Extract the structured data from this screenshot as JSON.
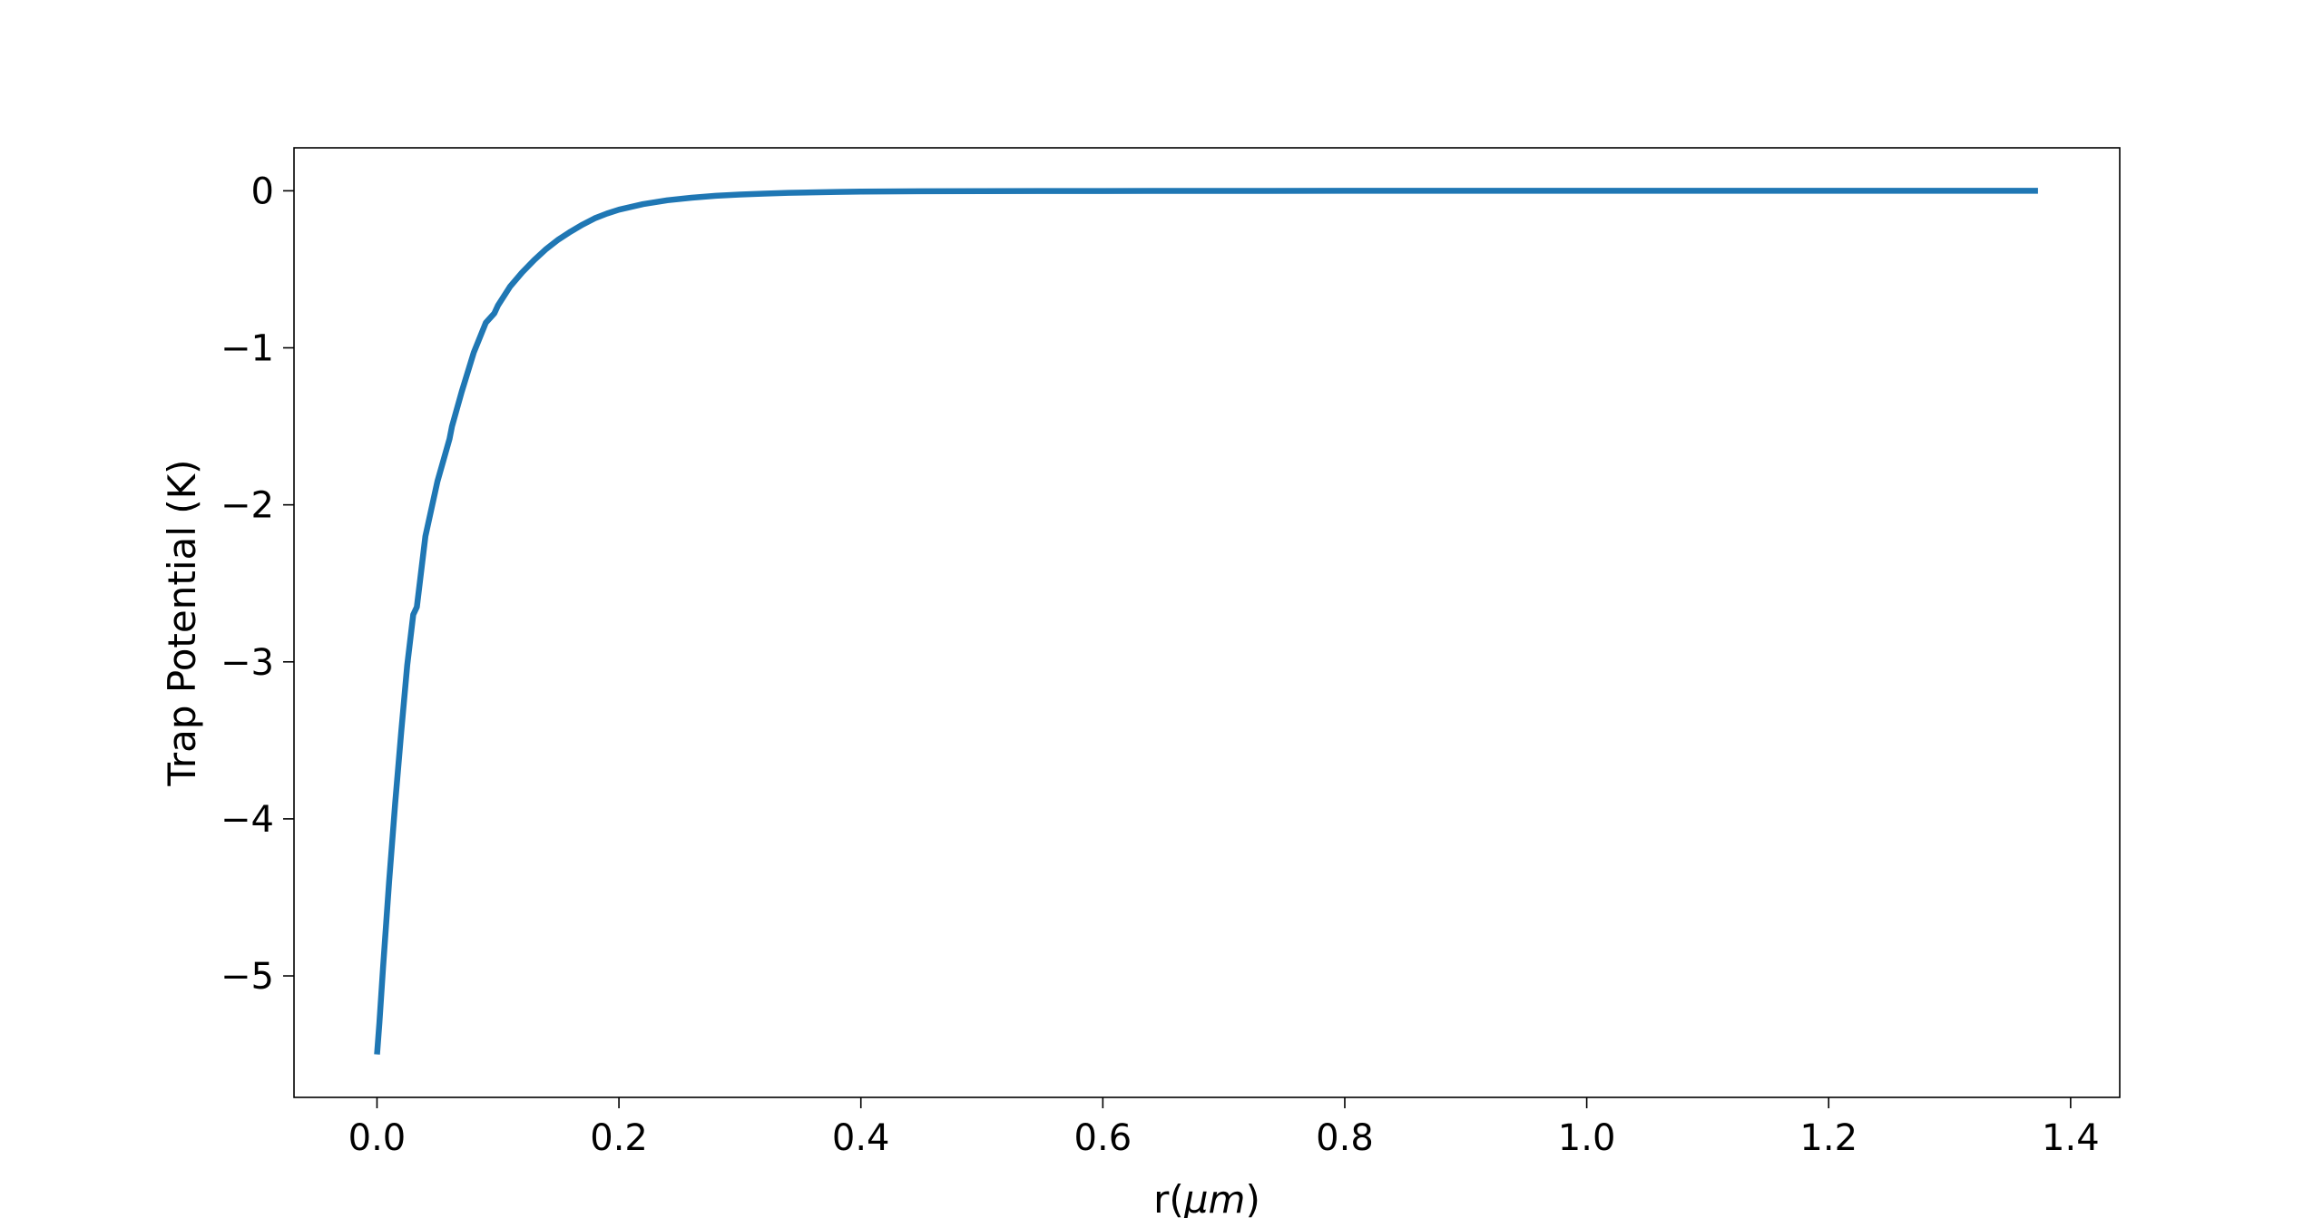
{
  "chart_data": {
    "type": "line",
    "title": "",
    "xlabel_main": "r(",
    "xlabel_symbol": "μm",
    "xlabel_close": ")",
    "ylabel": "Trap Potential (K)",
    "xlim": [
      -0.0686,
      1.4406
    ],
    "ylim": [
      -5.7737,
      0.2737
    ],
    "xticks": [
      0.0,
      0.2,
      0.4,
      0.6,
      0.8,
      1.0,
      1.2,
      1.4
    ],
    "xtick_labels": [
      "0.0",
      "0.2",
      "0.4",
      "0.6",
      "0.8",
      "1.0",
      "1.2",
      "1.4"
    ],
    "yticks": [
      0,
      -1,
      -2,
      -3,
      -4,
      -5
    ],
    "ytick_labels": [
      "0",
      "−1",
      "−2",
      "−3",
      "−4",
      "−5"
    ],
    "grid": false,
    "series": [
      {
        "color": "#1f77b4",
        "x": [
          0.0,
          0.002,
          0.005,
          0.01,
          0.015,
          0.02,
          0.025,
          0.03,
          0.033,
          0.04,
          0.05,
          0.06,
          0.062,
          0.07,
          0.08,
          0.09,
          0.097,
          0.1,
          0.11,
          0.12,
          0.13,
          0.14,
          0.15,
          0.16,
          0.17,
          0.18,
          0.19,
          0.2,
          0.22,
          0.24,
          0.26,
          0.28,
          0.3,
          0.32,
          0.34,
          0.36,
          0.38,
          0.4,
          0.45,
          0.5,
          0.6,
          0.8,
          1.0,
          1.2,
          1.373
        ],
        "y": [
          -5.5,
          -5.3,
          -4.95,
          -4.4,
          -3.9,
          -3.45,
          -3.02,
          -2.7,
          -2.65,
          -2.2,
          -1.85,
          -1.58,
          -1.5,
          -1.28,
          -1.03,
          -0.84,
          -0.78,
          -0.73,
          -0.61,
          -0.52,
          -0.44,
          -0.37,
          -0.31,
          -0.26,
          -0.215,
          -0.175,
          -0.145,
          -0.12,
          -0.085,
          -0.06,
          -0.044,
          -0.032,
          -0.024,
          -0.018,
          -0.013,
          -0.01,
          -0.007,
          -0.005,
          -0.003,
          -0.002,
          -0.001,
          0.0,
          0.0,
          0.0,
          0.0
        ]
      }
    ]
  }
}
